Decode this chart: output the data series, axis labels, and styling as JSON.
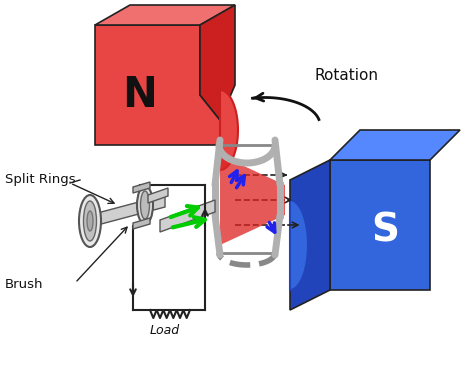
{
  "bg_color": "#ffffff",
  "N_magnet_face": "#e84545",
  "N_magnet_top": "#f07070",
  "N_magnet_side": "#cc2020",
  "S_magnet_face": "#3366dd",
  "S_magnet_top": "#5588ff",
  "S_magnet_side": "#2244bb",
  "coil_gray": "#b0b0b0",
  "coil_dark": "#888888",
  "shaft_color": "#d0d0d0",
  "ring_color": "#d8d8d8",
  "ring_edge": "#555555",
  "green_arrow": "#00cc00",
  "blue_arrow": "#2222ee",
  "red_cone": "#dd2222",
  "circuit_color": "#222222",
  "label_N": "N",
  "label_S": "S",
  "label_rotation": "Rotation",
  "label_split_rings": "Split Rings",
  "label_brush": "Brush",
  "label_load": "Load"
}
